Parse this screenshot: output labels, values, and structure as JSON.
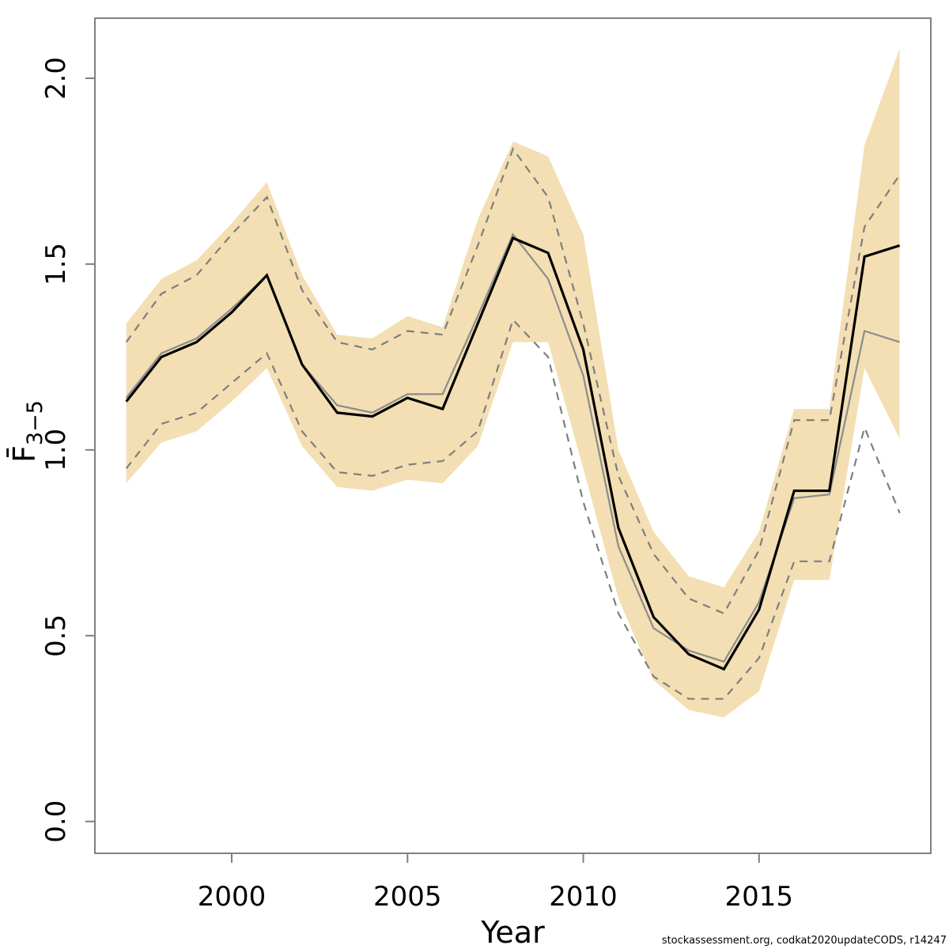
{
  "footer": {
    "credit": "stockassessment.org, codkat2020updateCODS, r14247"
  },
  "chart_data": {
    "type": "line",
    "title": "",
    "xlabel": "Year",
    "ylabel_main": "F̄",
    "ylabel_sub": "3−5",
    "x": [
      1997,
      1998,
      1999,
      2000,
      2001,
      2002,
      2003,
      2004,
      2005,
      2006,
      2007,
      2008,
      2009,
      2010,
      2011,
      2012,
      2013,
      2014,
      2015,
      2016,
      2017,
      2018,
      2019
    ],
    "series": [
      {
        "name": "fit1-mean",
        "style": "solid-black",
        "values": [
          1.13,
          1.25,
          1.29,
          1.37,
          1.47,
          1.23,
          1.1,
          1.09,
          1.14,
          1.11,
          1.34,
          1.57,
          1.53,
          1.27,
          0.79,
          0.55,
          0.45,
          0.41,
          0.57,
          0.89,
          0.89,
          1.52,
          1.55
        ]
      },
      {
        "name": "fit1-ci-upper",
        "style": "band-edge",
        "values": [
          1.34,
          1.46,
          1.51,
          1.61,
          1.72,
          1.47,
          1.31,
          1.3,
          1.36,
          1.33,
          1.62,
          1.83,
          1.79,
          1.58,
          1.0,
          0.78,
          0.66,
          0.63,
          0.78,
          1.11,
          1.11,
          1.82,
          2.08
        ]
      },
      {
        "name": "fit1-ci-lower",
        "style": "band-edge",
        "values": [
          0.91,
          1.02,
          1.05,
          1.13,
          1.22,
          1.01,
          0.9,
          0.89,
          0.92,
          0.91,
          1.01,
          1.29,
          1.29,
          0.95,
          0.6,
          0.38,
          0.3,
          0.28,
          0.35,
          0.65,
          0.65,
          1.22,
          1.03
        ]
      },
      {
        "name": "fit2-mean",
        "style": "solid-gray",
        "values": [
          1.14,
          1.26,
          1.3,
          1.38,
          1.47,
          1.23,
          1.12,
          1.1,
          1.15,
          1.15,
          1.36,
          1.58,
          1.46,
          1.2,
          0.74,
          0.52,
          0.46,
          0.43,
          0.59,
          0.87,
          0.88,
          1.32,
          1.29
        ]
      },
      {
        "name": "fit2-ci-upper",
        "style": "dashed-gray",
        "values": [
          1.29,
          1.42,
          1.47,
          1.58,
          1.68,
          1.43,
          1.29,
          1.27,
          1.32,
          1.31,
          1.55,
          1.81,
          1.68,
          1.34,
          0.93,
          0.72,
          0.6,
          0.56,
          0.73,
          1.08,
          1.08,
          1.6,
          1.74
        ]
      },
      {
        "name": "fit2-ci-lower",
        "style": "dashed-gray",
        "values": [
          0.95,
          1.07,
          1.1,
          1.18,
          1.26,
          1.05,
          0.94,
          0.93,
          0.96,
          0.97,
          1.05,
          1.35,
          1.25,
          0.86,
          0.56,
          0.39,
          0.33,
          0.33,
          0.44,
          0.7,
          0.7,
          1.06,
          0.83
        ]
      }
    ],
    "x_ticks": [
      "2000",
      "2005",
      "2010",
      "2015"
    ],
    "x_tick_values": [
      2000,
      2005,
      2010,
      2015
    ],
    "y_ticks": [
      "0.0",
      "0.5",
      "1.0",
      "1.5",
      "2.0"
    ],
    "y_tick_values": [
      0.0,
      0.5,
      1.0,
      1.5,
      2.0
    ],
    "xlim": [
      1996.108,
      2019.886
    ],
    "ylim": [
      -0.0857,
      2.1617
    ],
    "grid": "off",
    "legend": "none",
    "band_color": "#F3DFB3",
    "line_color_fit1": "#000000",
    "line_color_fit2": "#8C8C8C",
    "dash_color": "#7E7E7E",
    "axis_color": "#808080"
  }
}
